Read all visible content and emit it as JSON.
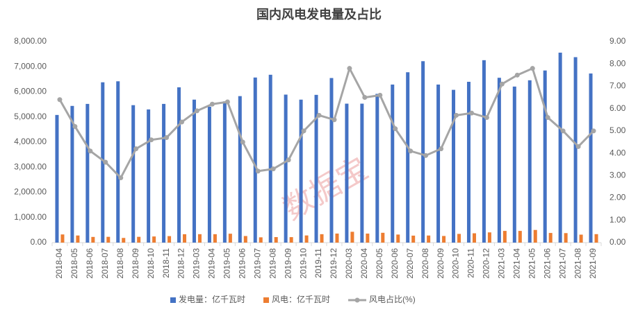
{
  "chart_data": {
    "type": "bar",
    "title": "国内风电发电量及占比",
    "watermark": "数据宝",
    "categories": [
      "2018-04",
      "2018-05",
      "2018-06",
      "2018-07",
      "2018-08",
      "2018-09",
      "2018-10",
      "2018-11",
      "2018-12",
      "2019-03",
      "2019-04",
      "2019-05",
      "2019-06",
      "2019-07",
      "2019-08",
      "2019-09",
      "2019-10",
      "2019-11",
      "2019-12",
      "2020-03",
      "2020-04",
      "2020-05",
      "2020-06",
      "2020-07",
      "2020-08",
      "2020-09",
      "2020-10",
      "2020-11",
      "2020-12",
      "2021-03",
      "2021-04",
      "2021-05",
      "2021-06",
      "2021-07",
      "2021-08",
      "2021-09"
    ],
    "series": [
      {
        "name": "发电量：亿千瓦时",
        "type": "bar",
        "color": "#4472c4",
        "values": [
          5080,
          5440,
          5520,
          6380,
          6420,
          5470,
          5300,
          5520,
          6180,
          5690,
          5410,
          5620,
          5830,
          6570,
          6680,
          5890,
          5690,
          5880,
          6550,
          5530,
          5530,
          5920,
          6290,
          6780,
          7220,
          6290,
          6080,
          6400,
          7260,
          6560,
          6210,
          6460,
          6850,
          7560,
          7380,
          6730
        ]
      },
      {
        "name": "风电：亿千瓦时",
        "type": "bar",
        "color": "#ed7d31",
        "values": [
          325,
          283,
          226,
          230,
          186,
          230,
          244,
          259,
          334,
          336,
          335,
          354,
          262,
          210,
          220,
          218,
          285,
          335,
          360,
          431,
          359,
          391,
          321,
          278,
          282,
          264,
          347,
          371,
          407,
          466,
          466,
          504,
          384,
          378,
          317,
          337
        ]
      },
      {
        "name": "风电占比(%)",
        "type": "line",
        "axis": "y2",
        "color": "#a5a5a5",
        "values": [
          6.4,
          5.2,
          4.1,
          3.6,
          2.9,
          4.2,
          4.6,
          4.7,
          5.4,
          5.9,
          6.2,
          6.3,
          4.5,
          3.2,
          3.3,
          3.7,
          5.0,
          5.7,
          5.5,
          7.8,
          6.5,
          6.6,
          5.1,
          4.1,
          3.9,
          4.2,
          5.7,
          5.8,
          5.6,
          7.1,
          7.5,
          7.8,
          5.6,
          5.0,
          4.3,
          5.0
        ]
      }
    ],
    "ylim": [
      0,
      8000
    ],
    "yticks": [
      {
        "value": 0,
        "label": "0.00"
      },
      {
        "value": 1000,
        "label": "1,000.00"
      },
      {
        "value": 2000,
        "label": "2,000.00"
      },
      {
        "value": 3000,
        "label": "3,000.00"
      },
      {
        "value": 4000,
        "label": "4,000.00"
      },
      {
        "value": 5000,
        "label": "5,000.00"
      },
      {
        "value": 6000,
        "label": "6,000.00"
      },
      {
        "value": 7000,
        "label": "7,000.00"
      },
      {
        "value": 8000,
        "label": "8,000.00"
      }
    ],
    "y2lim": [
      0,
      9
    ],
    "y2ticks": [
      {
        "value": 0,
        "label": "0.00"
      },
      {
        "value": 1,
        "label": "1.00"
      },
      {
        "value": 2,
        "label": "2.00"
      },
      {
        "value": 3,
        "label": "3.00"
      },
      {
        "value": 4,
        "label": "4.00"
      },
      {
        "value": 5,
        "label": "5.00"
      },
      {
        "value": 6,
        "label": "6.00"
      },
      {
        "value": 7,
        "label": "7.00"
      },
      {
        "value": 8,
        "label": "8.00"
      },
      {
        "value": 9,
        "label": "9.00"
      }
    ],
    "grid": false,
    "legend": "bottom"
  }
}
